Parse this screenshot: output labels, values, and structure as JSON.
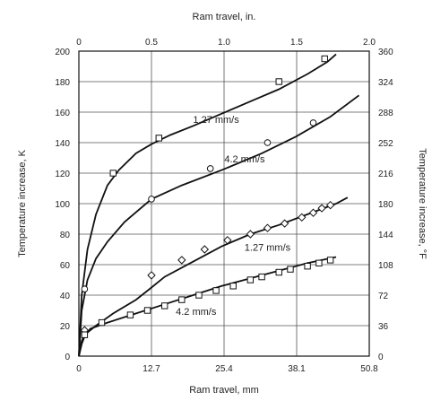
{
  "chart_data": {
    "type": "line",
    "title": "",
    "xlabel": "Ram travel, mm",
    "x2label": "Ram travel, in.",
    "ylabel": "Temperature increase, K",
    "y2label": "Temperature increase, °F",
    "xlim": [
      0,
      50.8
    ],
    "ylim": [
      0,
      200
    ],
    "x_ticks": [
      "0",
      "12.7",
      "25.4",
      "38.1",
      "50.8"
    ],
    "x2_ticks": [
      "0",
      "0.5",
      "1.0",
      "1.5",
      "2.0"
    ],
    "y_ticks": [
      "0",
      "20",
      "40",
      "60",
      "80",
      "100",
      "120",
      "140",
      "160",
      "180",
      "200"
    ],
    "y2_ticks": [
      "0",
      "36",
      "72",
      "108",
      "144",
      "180",
      "216",
      "252",
      "288",
      "324",
      "360"
    ],
    "grid": true,
    "series": [
      {
        "name": "1.27 mm/s",
        "marker": "square",
        "curve": [
          [
            0,
            0
          ],
          [
            0.5,
            40
          ],
          [
            1.5,
            70
          ],
          [
            3,
            93
          ],
          [
            5,
            112
          ],
          [
            7,
            122
          ],
          [
            10,
            133
          ],
          [
            12.7,
            139
          ],
          [
            16,
            145
          ],
          [
            20,
            151
          ],
          [
            25,
            159
          ],
          [
            30,
            167
          ],
          [
            35,
            175
          ],
          [
            40,
            185
          ],
          [
            43.5,
            193
          ],
          [
            45,
            198
          ]
        ],
        "points": [
          [
            6,
            120
          ],
          [
            14,
            143
          ],
          [
            35,
            180
          ],
          [
            43,
            195
          ]
        ]
      },
      {
        "name": "4.2 mm/s",
        "marker": "circle",
        "curve": [
          [
            0,
            0
          ],
          [
            0.5,
            30
          ],
          [
            1.5,
            50
          ],
          [
            3,
            64
          ],
          [
            5,
            75
          ],
          [
            8,
            88
          ],
          [
            12.7,
            103
          ],
          [
            18,
            112
          ],
          [
            25,
            122
          ],
          [
            32,
            133
          ],
          [
            38,
            144
          ],
          [
            44,
            157
          ],
          [
            49,
            171
          ]
        ],
        "points": [
          [
            1,
            44
          ],
          [
            12.7,
            103
          ],
          [
            23,
            123
          ],
          [
            33,
            140
          ],
          [
            41,
            153
          ]
        ]
      },
      {
        "name": "1.27 mm/s",
        "marker": "diamond",
        "curve": [
          [
            0,
            0
          ],
          [
            0.5,
            10
          ],
          [
            1,
            14
          ],
          [
            3,
            20
          ],
          [
            6,
            28
          ],
          [
            10,
            37
          ],
          [
            12.7,
            45
          ],
          [
            15,
            52
          ],
          [
            20,
            62
          ],
          [
            25,
            72
          ],
          [
            30,
            80
          ],
          [
            35,
            86
          ],
          [
            40,
            93
          ],
          [
            45,
            100
          ],
          [
            47,
            104
          ]
        ],
        "points": [
          [
            1,
            17
          ],
          [
            12.7,
            53
          ],
          [
            18,
            63
          ],
          [
            22,
            70
          ],
          [
            26,
            76
          ],
          [
            30,
            80
          ],
          [
            33,
            84
          ],
          [
            36,
            87
          ],
          [
            39,
            91
          ],
          [
            41,
            94
          ],
          [
            42.5,
            97
          ],
          [
            44,
            99
          ]
        ]
      },
      {
        "name": "4.2 mm/s",
        "marker": "square",
        "curve": [
          [
            0,
            0
          ],
          [
            0.5,
            8
          ],
          [
            1,
            13
          ],
          [
            2,
            18
          ],
          [
            5,
            22
          ],
          [
            10,
            28
          ],
          [
            15,
            34
          ],
          [
            20,
            40
          ],
          [
            25,
            46
          ],
          [
            30,
            51
          ],
          [
            35,
            56
          ],
          [
            40,
            61
          ],
          [
            45,
            65
          ]
        ],
        "points": [
          [
            1,
            14
          ],
          [
            4,
            22
          ],
          [
            9,
            27
          ],
          [
            12,
            30
          ],
          [
            15,
            33
          ],
          [
            18,
            37
          ],
          [
            21,
            40
          ],
          [
            24,
            43
          ],
          [
            27,
            46
          ],
          [
            30,
            50
          ],
          [
            32,
            52
          ],
          [
            35,
            55
          ],
          [
            37,
            57
          ],
          [
            40,
            59
          ],
          [
            42,
            61
          ],
          [
            44,
            63
          ]
        ]
      }
    ],
    "annotations": [
      {
        "text": "1.27 mm/s",
        "x": 24,
        "y": 153
      },
      {
        "text": "4.2 mm/s",
        "x": 29,
        "y": 127
      },
      {
        "text": "1.27 mm/s",
        "x": 33,
        "y": 69
      },
      {
        "text": "4.2 mm/s",
        "x": 20.5,
        "y": 27
      }
    ]
  }
}
